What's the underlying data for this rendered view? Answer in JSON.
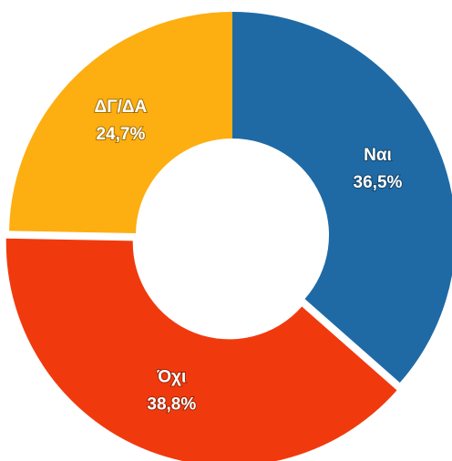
{
  "chart_data": {
    "type": "donut",
    "categories": [
      "Ναι",
      "Όχι",
      "ΔΓ/ΔΑ"
    ],
    "values": [
      36.5,
      38.8,
      24.7
    ],
    "value_labels": [
      "36,5%",
      "38,8%",
      "24,7%"
    ],
    "colors": [
      "#1f6aa5",
      "#f03a0e",
      "#fdae10"
    ]
  }
}
